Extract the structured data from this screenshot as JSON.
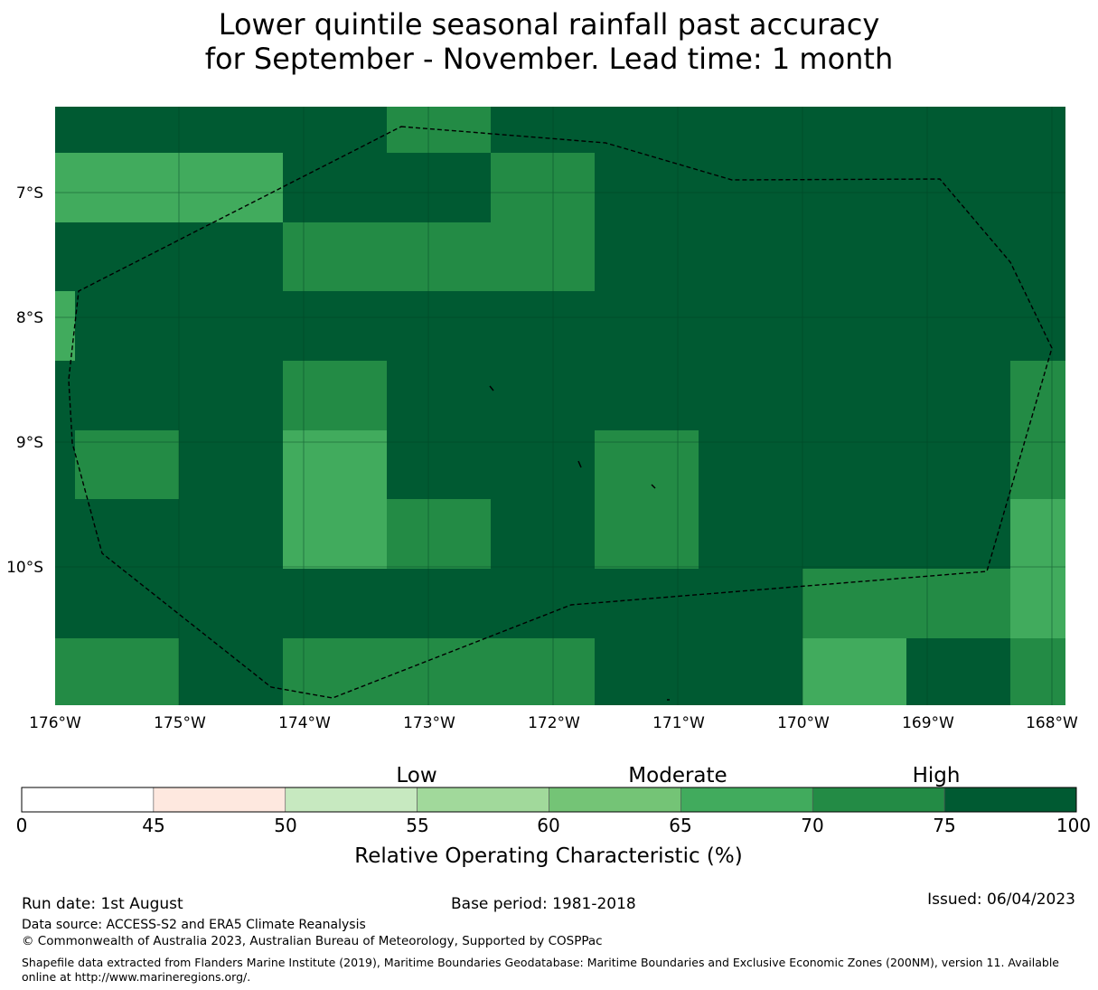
{
  "title": {
    "line1": "Lower quintile seasonal rainfall past accuracy",
    "line2": "for September - November. Lead time: 1 month"
  },
  "map": {
    "lat_labels": [
      "7°S",
      "8°S",
      "9°S",
      "10°S"
    ],
    "lon_labels": [
      "176°W",
      "175°W",
      "174°W",
      "173°W",
      "172°W",
      "171°W",
      "170°W",
      "169°W",
      "168°W"
    ],
    "lon_range": [
      -176,
      -168
    ],
    "lat_range": [
      -11.15,
      -6.3
    ],
    "cell_value_colors": {
      "dark": "#005a32",
      "mid": "#238b45",
      "light": "#41ab5d"
    },
    "boundary_style": "dashed black (EEZ outline)"
  },
  "colorbar": {
    "category_labels": [
      "Low",
      "Moderate",
      "High"
    ],
    "tick_labels": [
      "0",
      "45",
      "50",
      "55",
      "60",
      "65",
      "70",
      "75",
      "100"
    ],
    "colors": [
      "#ffffff",
      "#fee8df",
      "#c7e9c0",
      "#a1d99b",
      "#74c476",
      "#41ab5d",
      "#238b45",
      "#005a32"
    ],
    "label": "Relative Operating Characteristic (%)"
  },
  "footer": {
    "run_date": "Run date: 1st August",
    "base_period": "Base period: 1981-2018",
    "issued": "Issued: 06/04/2023",
    "data_source": "Data source: ACCESS-S2 and ERA5 Climate Reanalysis",
    "copyright": "© Commonwealth of Australia 2023, Australian Bureau of Meteorology, Supported by COSPPac",
    "shapefile": "Shapefile data extracted from Flanders Marine Institute (2019), Maritime Boundaries Geodatabase: Maritime Boundaries and Exclusive Economic Zones (200NM), version 11. Available online at http://www.marineregions.org/."
  }
}
